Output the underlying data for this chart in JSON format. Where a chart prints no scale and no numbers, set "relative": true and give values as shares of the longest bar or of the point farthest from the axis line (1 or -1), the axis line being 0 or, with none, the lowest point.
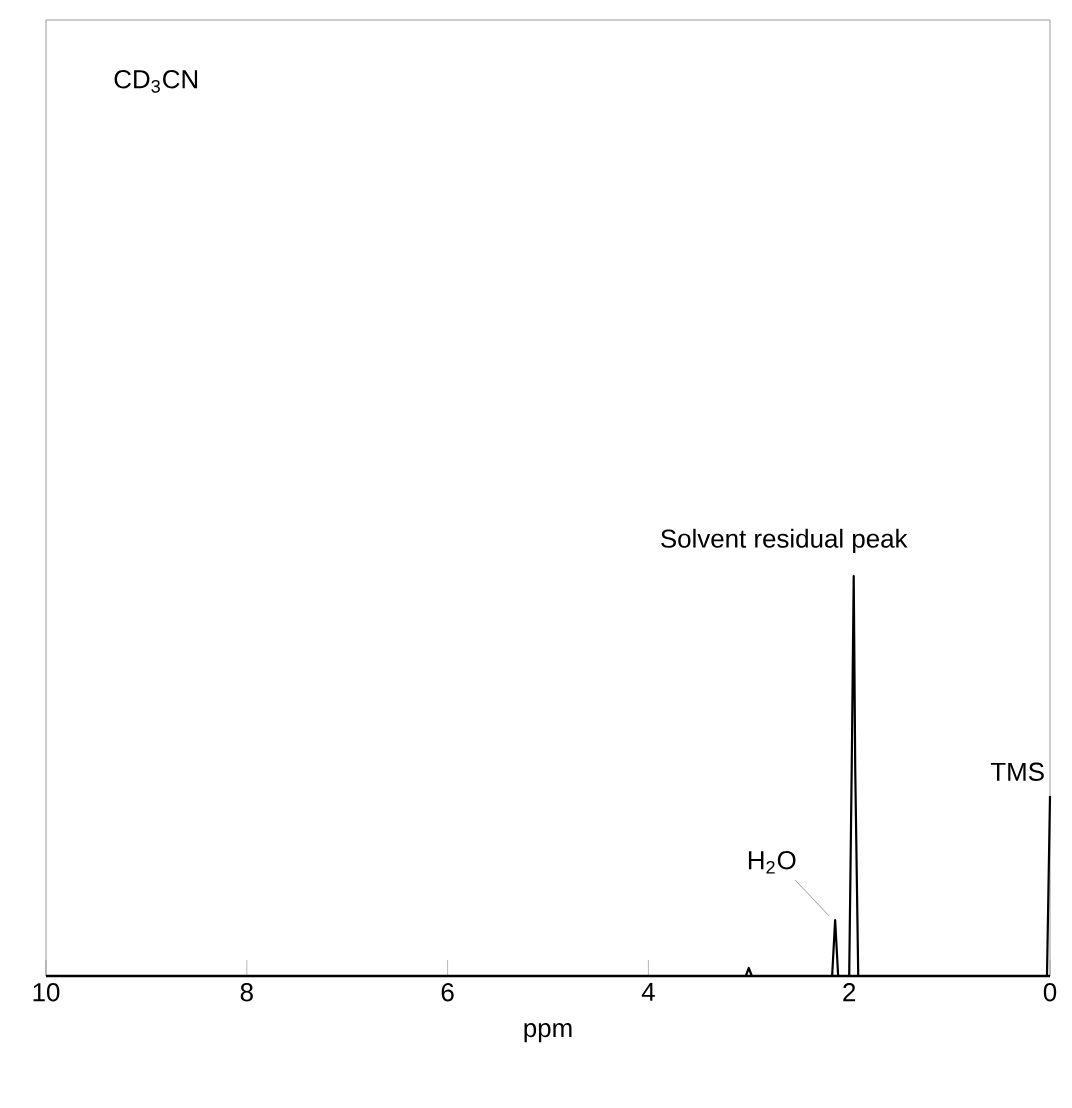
{
  "chart_data": {
    "type": "line",
    "relative": true,
    "xlabel": "ppm",
    "xlim": [
      10,
      0
    ],
    "xticks": [
      10,
      8,
      6,
      4,
      2,
      0
    ],
    "tick_labels": "x",
    "color": "#000000",
    "x": [
      10,
      3.03,
      3.0,
      2.97,
      2.17,
      2.14,
      2.11,
      2.0,
      1.975,
      1.955,
      1.94,
      1.91,
      0.03,
      0
    ],
    "values": [
      0,
      0,
      0.02,
      0,
      0,
      0.14,
      0,
      0,
      0.52,
      1.0,
      0.52,
      0,
      0,
      0.45
    ],
    "annotations": [
      "CD$_{3}$CN",
      {
        "text": "Solvent residual peak",
        "x": 1.955,
        "y": 1.0
      },
      {
        "text": "H$_{2}$O",
        "x": 2.14,
        "y": 0.14
      },
      {
        "text": "TMS",
        "x": 0,
        "y": 0.45
      }
    ]
  }
}
